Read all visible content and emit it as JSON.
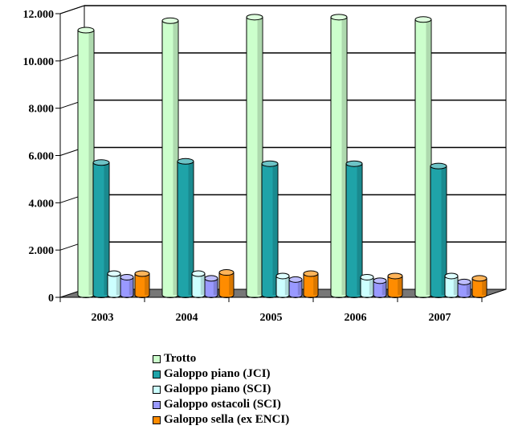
{
  "chart_data": {
    "type": "bar",
    "title": "",
    "xlabel": "",
    "ylabel": "",
    "categories": [
      "2003",
      "2004",
      "2005",
      "2006",
      "2007"
    ],
    "ylim": [
      0,
      12000
    ],
    "yticks": [
      0,
      2000,
      4000,
      6000,
      8000,
      10000,
      12000
    ],
    "ytick_labels": [
      "0",
      "2.000",
      "4.000",
      "6.000",
      "8.000",
      "10.000",
      "12.000"
    ],
    "grid": true,
    "legend_position": "bottom",
    "series": [
      {
        "name": "Trotto",
        "color": "#ccffcc",
        "values": [
          11200,
          11600,
          11750,
          11750,
          11650
        ]
      },
      {
        "name": "Galoppo piano (JCI)",
        "color": "#1fa3a8",
        "values": [
          5600,
          5650,
          5550,
          5550,
          5450
        ]
      },
      {
        "name": "Galoppo piano (SCI)",
        "color": "#ccffff",
        "values": [
          900,
          900,
          800,
          750,
          800
        ]
      },
      {
        "name": "Galoppo ostacoli (SCI)",
        "color": "#9999ff",
        "values": [
          750,
          700,
          650,
          600,
          550
        ]
      },
      {
        "name": "Galoppo sella (ex ENCI)",
        "color": "#ff8c00",
        "values": [
          900,
          950,
          900,
          800,
          700
        ]
      }
    ]
  }
}
